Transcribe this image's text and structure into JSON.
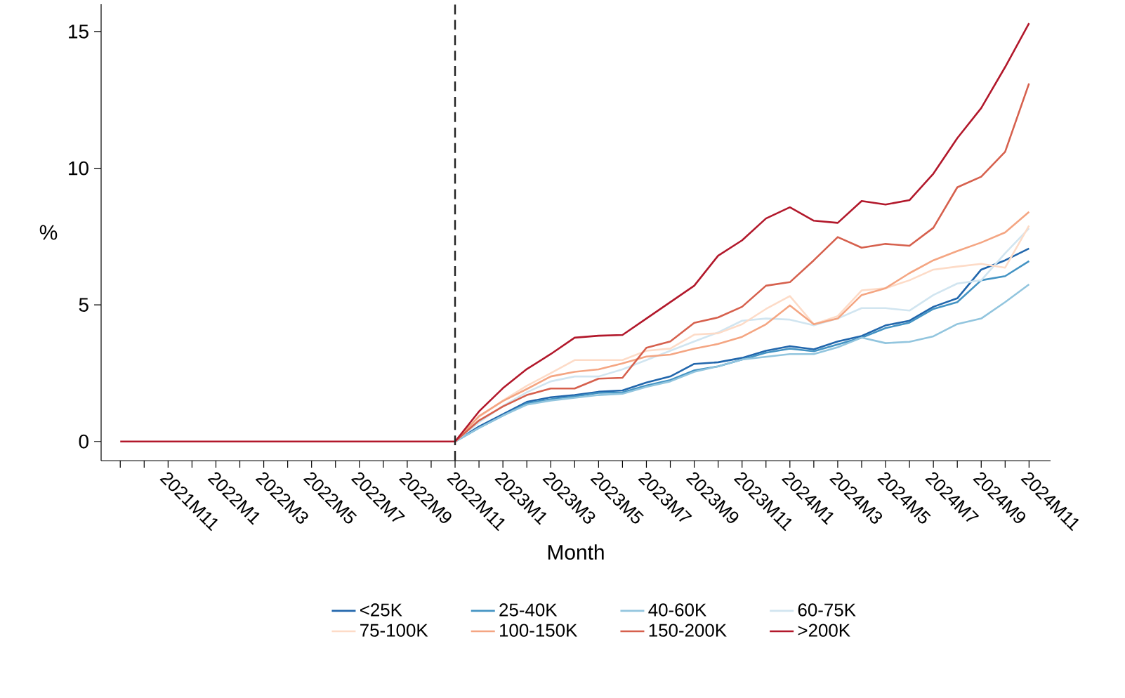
{
  "chart_data": {
    "type": "line",
    "xlabel": "Month",
    "ylabel": "%",
    "categories": [
      null,
      null,
      "2021M11",
      null,
      "2022M1",
      null,
      "2022M3",
      null,
      "2022M5",
      null,
      "2022M7",
      null,
      "2022M9",
      null,
      "2022M11",
      null,
      "2023M1",
      null,
      "2023M3",
      null,
      "2023M5",
      null,
      "2023M7",
      null,
      "2023M9",
      null,
      "2023M11",
      null,
      "2024M1",
      null,
      "2024M3",
      null,
      "2024M5",
      null,
      "2024M7",
      null,
      "2024M9",
      null,
      "2024M11"
    ],
    "series": [
      {
        "name": "<25K",
        "color": "#2166ac",
        "values": [
          null,
          null,
          null,
          null,
          null,
          null,
          null,
          null,
          null,
          null,
          null,
          null,
          null,
          null,
          0,
          0.55,
          1.0,
          1.45,
          1.62,
          1.7,
          1.82,
          1.87,
          2.16,
          2.38,
          2.84,
          2.9,
          3.06,
          3.32,
          3.49,
          3.37,
          3.66,
          3.86,
          4.25,
          4.42,
          4.93,
          5.24,
          6.29,
          6.63,
          7.06
        ]
      },
      {
        "name": "25-40K",
        "color": "#4393c3",
        "values": [
          null,
          null,
          null,
          null,
          null,
          null,
          null,
          null,
          null,
          null,
          null,
          null,
          null,
          null,
          0,
          0.5,
          0.95,
          1.4,
          1.55,
          1.65,
          1.78,
          1.8,
          2.05,
          2.25,
          2.6,
          2.75,
          3.0,
          3.25,
          3.4,
          3.3,
          3.55,
          3.8,
          4.15,
          4.35,
          4.85,
          5.1,
          5.9,
          6.05,
          6.6
        ]
      },
      {
        "name": "40-60K",
        "color": "#92c5de",
        "values": [
          null,
          null,
          null,
          null,
          null,
          null,
          null,
          null,
          null,
          null,
          null,
          null,
          null,
          null,
          0,
          0.5,
          0.95,
          1.35,
          1.5,
          1.6,
          1.7,
          1.75,
          2.0,
          2.2,
          2.55,
          2.75,
          3.0,
          3.1,
          3.2,
          3.2,
          3.45,
          3.8,
          3.6,
          3.65,
          3.85,
          4.3,
          4.5,
          5.1,
          5.75
        ]
      },
      {
        "name": "60-75K",
        "color": "#d1e5f0",
        "values": [
          null,
          null,
          null,
          null,
          null,
          null,
          null,
          null,
          null,
          null,
          null,
          null,
          null,
          null,
          0,
          0.7,
          1.3,
          1.8,
          2.2,
          2.38,
          2.38,
          2.64,
          2.98,
          3.32,
          3.66,
          3.99,
          4.42,
          4.5,
          4.46,
          4.25,
          4.5,
          4.88,
          4.88,
          4.79,
          5.36,
          5.78,
          5.9,
          6.89,
          7.8
        ]
      },
      {
        "name": "75-100K",
        "color": "#fddbc7",
        "values": [
          null,
          null,
          null,
          null,
          null,
          null,
          null,
          null,
          null,
          null,
          null,
          null,
          null,
          null,
          0,
          0.9,
          1.5,
          2.04,
          2.5,
          2.98,
          2.98,
          2.98,
          3.32,
          3.4,
          3.91,
          3.96,
          4.29,
          4.85,
          5.32,
          4.29,
          4.59,
          5.53,
          5.61,
          5.9,
          6.29,
          6.4,
          6.5,
          6.36,
          7.9
        ]
      },
      {
        "name": "100-150K",
        "color": "#f4a582",
        "values": [
          null,
          null,
          null,
          null,
          null,
          null,
          null,
          null,
          null,
          null,
          null,
          null,
          null,
          null,
          0,
          0.93,
          1.48,
          1.92,
          2.38,
          2.55,
          2.64,
          2.86,
          3.11,
          3.18,
          3.4,
          3.57,
          3.83,
          4.29,
          4.98,
          4.29,
          4.5,
          5.36,
          5.61,
          6.16,
          6.63,
          6.97,
          7.28,
          7.65,
          8.4
        ]
      },
      {
        "name": "150-200K",
        "color": "#d6604d",
        "values": [
          null,
          null,
          null,
          null,
          null,
          null,
          null,
          null,
          null,
          null,
          null,
          null,
          null,
          null,
          0,
          0.77,
          1.28,
          1.7,
          1.94,
          1.94,
          2.3,
          2.33,
          3.43,
          3.66,
          4.34,
          4.54,
          4.93,
          5.7,
          5.83,
          6.63,
          7.48,
          7.09,
          7.23,
          7.16,
          7.82,
          9.3,
          9.69,
          10.6,
          13.1
        ]
      },
      {
        "name": ">200K",
        "color": "#b2182b",
        "values": [
          0,
          0,
          0,
          0,
          0,
          0,
          0,
          0,
          0,
          0,
          0,
          0,
          0,
          0,
          0,
          1.1,
          1.95,
          2.65,
          3.2,
          3.8,
          3.87,
          3.9,
          4.5,
          5.1,
          5.7,
          6.8,
          7.36,
          8.16,
          8.57,
          8.08,
          8.0,
          8.8,
          8.67,
          8.83,
          9.8,
          11.1,
          12.2,
          13.7,
          15.3
        ]
      }
    ],
    "ylim": [
      -0.7,
      16
    ],
    "yticks": [
      0,
      5,
      10,
      15
    ],
    "ref_lines": [
      {
        "axis": "x",
        "value": "2022M11",
        "line_style": "dashed",
        "color": "#222222"
      }
    ],
    "legend": "bottom"
  }
}
